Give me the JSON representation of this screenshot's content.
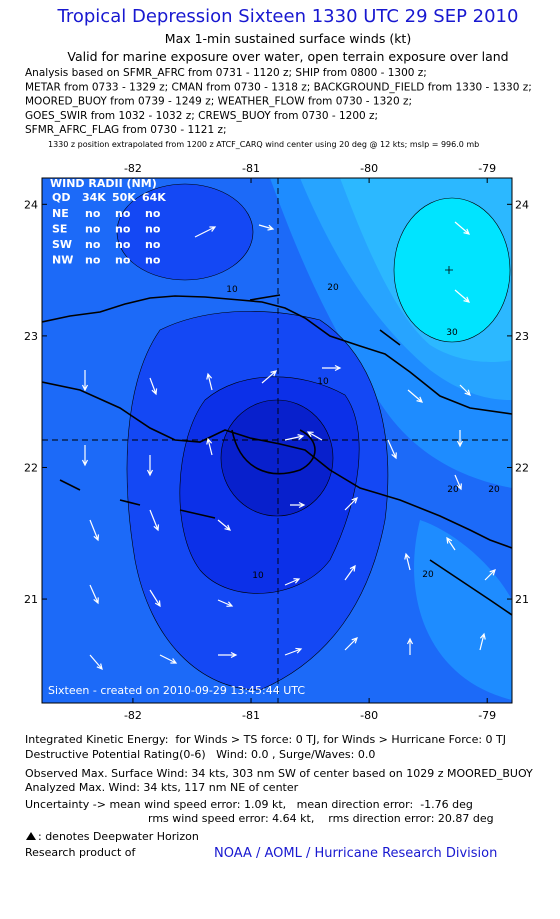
{
  "header": {
    "title": "Tropical Depression Sixteen 1330 UTC 29 SEP 2010",
    "subtitle": [
      "Max 1-min sustained surface winds (kt)",
      "Valid for marine exposure over water, open terrain exposure over land"
    ],
    "analysis": [
      "Analysis based on SFMR_AFRC from 0731 - 1120 z; SHIP from 0800 - 1300 z;",
      "METAR from 0733 - 1329 z; CMAN from 0730 - 1318 z; BACKGROUND_FIELD from 1330 - 1330 z;",
      "MOORED_BUOY from 0739 - 1249 z; WEATHER_FLOW from 0730 - 1320 z;",
      "GOES_SWIR from 1032 - 1032 z; CREWS_BUOY from 0730 - 1200 z;",
      "SFMR_AFRC_FLAG from 0730 - 1121 z;"
    ],
    "position_note": "1330 z position extrapolated from 1200 z ATCF_CARQ wind center using 20 deg @ 12 kts; mslp = 996.0 mb"
  },
  "map": {
    "xlim": [
      -82.77,
      -78.79
    ],
    "ylim": [
      20.21,
      24.2
    ],
    "xticks": [
      -82,
      -81,
      -80,
      -79
    ],
    "yticks": [
      21,
      22,
      23,
      24
    ],
    "contour_labels": [
      10,
      10,
      10,
      20,
      20,
      20,
      20,
      30
    ],
    "wind_radii": {
      "title": "WIND RADII (NM)",
      "header": [
        "QD",
        "34K",
        "50K",
        "64K"
      ],
      "rows": [
        [
          "NE",
          "no",
          "no",
          "no"
        ],
        [
          "SE",
          "no",
          "no",
          "no"
        ],
        [
          "SW",
          "no",
          "no",
          "no"
        ],
        [
          "NW",
          "no",
          "no",
          "no"
        ]
      ]
    },
    "credit": "Sixteen - created on 2010-09-29 13:45:44 UTC"
  },
  "footer": {
    "ike": "Integrated Kinetic Energy:  for Winds > TS force: 0 TJ, for Winds > Hurricane Force: 0 TJ",
    "dpr": "Destructive Potential Rating(0-6)   Wind: 0.0 , Surge/Waves: 0.0",
    "observed": "Observed Max. Surface Wind: 34 kts, 303 nm SW of center based on 1029 z MOORED_BUOY",
    "analyzed": "Analyzed Max. Wind: 34 kts, 117 nm NE of center",
    "uncertainty": [
      "Uncertainty -> mean wind speed error: 1.09 kt,   mean direction error:  -1.76 deg",
      "rms wind speed error: 4.64 kt,    rms direction error: 20.87 deg"
    ],
    "deepwater": ": denotes Deepwater Horizon",
    "research": "Research product of",
    "link": "NOAA / AOML / Hurricane Research Division"
  }
}
